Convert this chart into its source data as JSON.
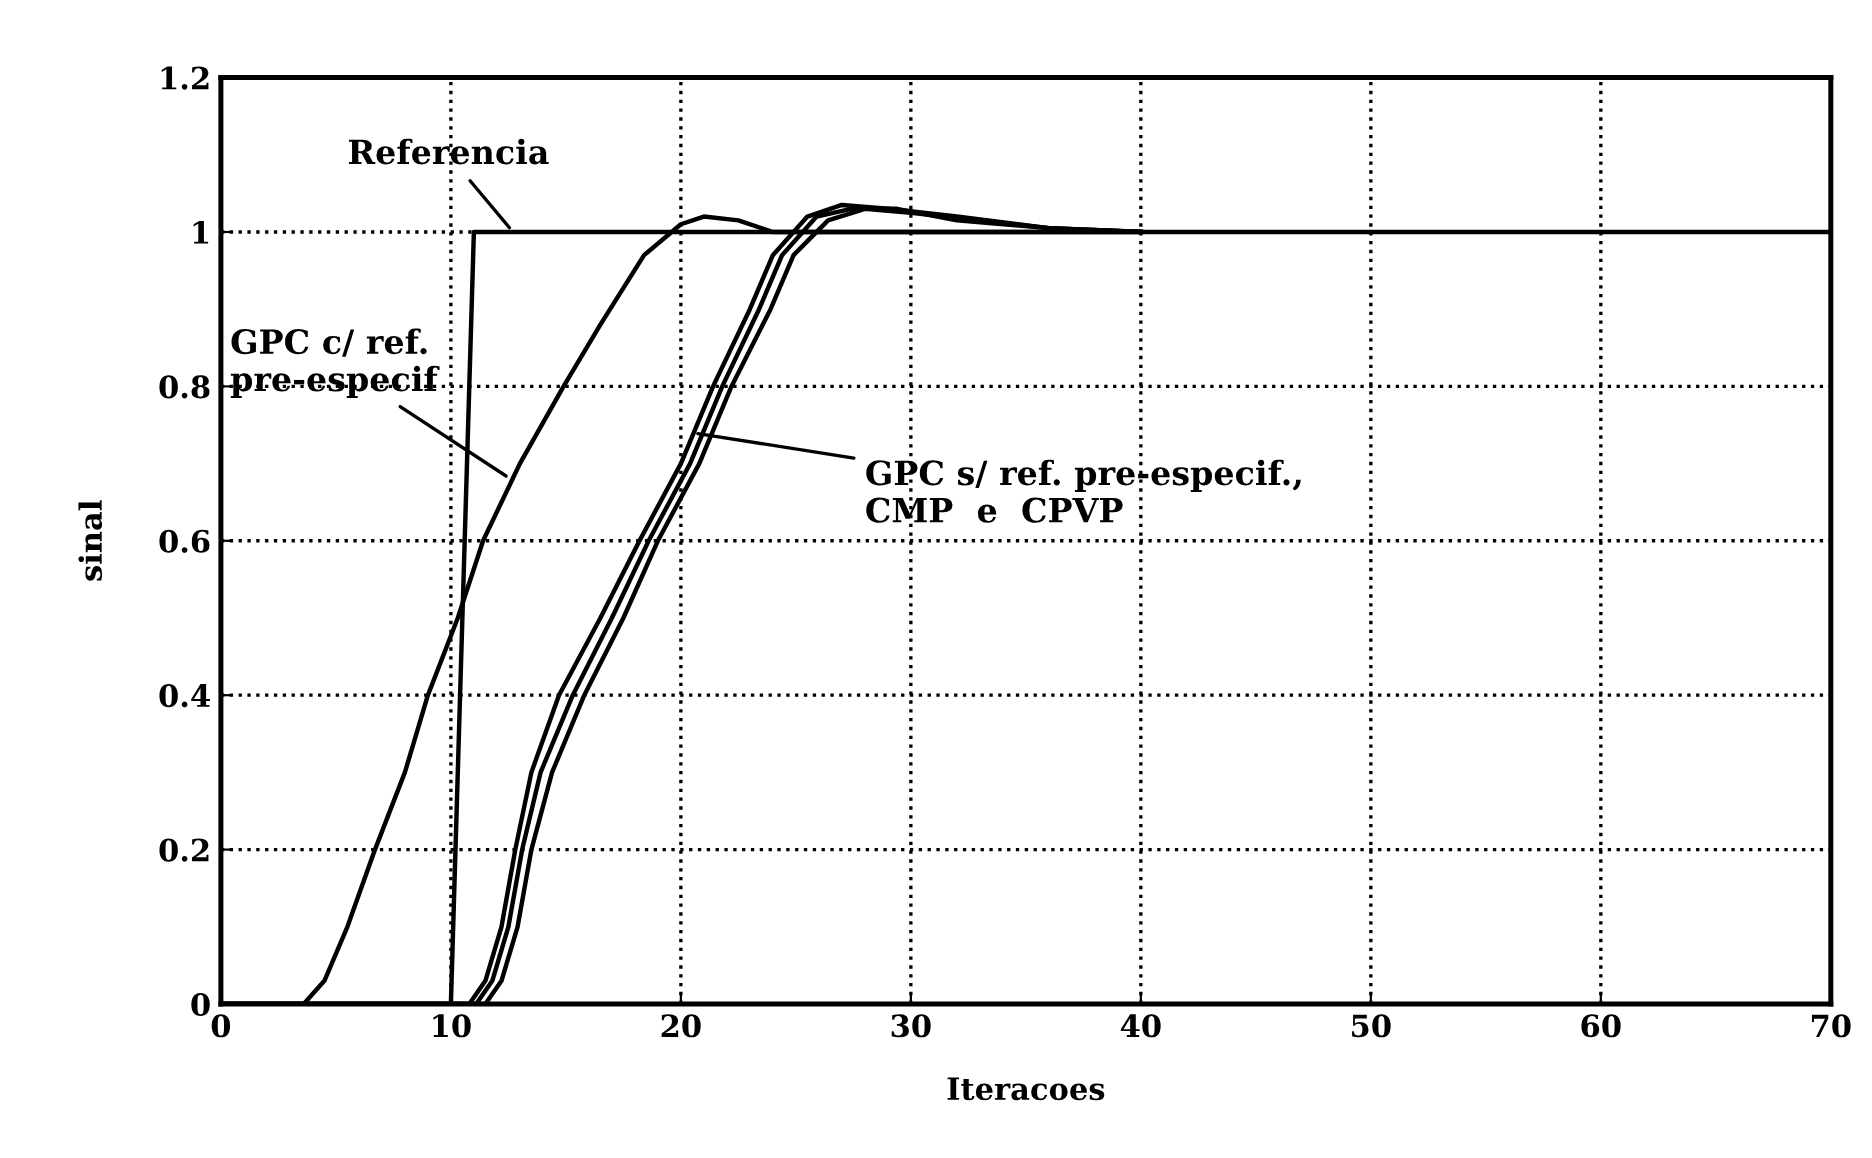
{
  "chart_data": {
    "type": "line",
    "xlabel": "Iteracoes",
    "ylabel": "sinal",
    "xlim": [
      0,
      70
    ],
    "xticks": [
      0,
      10,
      20,
      30,
      40,
      50,
      60,
      70
    ],
    "ylim": [
      0,
      1.2
    ],
    "yticks": [
      0,
      0.2,
      0.4,
      0.6,
      0.8,
      1,
      1.2
    ],
    "grid": true,
    "marker": "none",
    "line_style": "solid",
    "series": [
      {
        "color": "#000000",
        "x": [
          0,
          10,
          11,
          70
        ],
        "values": [
          0,
          0,
          1,
          1
        ]
      },
      {
        "color": "#000000",
        "x": [
          0,
          3,
          3.6,
          4.5,
          5.5,
          6.7,
          8,
          9,
          10.3,
          11.4,
          13,
          14.9,
          16.5,
          18.4,
          20,
          21,
          22.5,
          24,
          27,
          30,
          40
        ],
        "values": [
          0,
          0,
          0,
          0.03,
          0.1,
          0.2,
          0.3,
          0.4,
          0.5,
          0.6,
          0.7,
          0.8,
          0.88,
          0.97,
          1.01,
          1.02,
          1.015,
          1.0,
          1.0,
          1.0,
          1.0
        ]
      },
      {
        "color": "#000000",
        "x": [
          0,
          10.8,
          11.5,
          12.2,
          12.8,
          13.5,
          14.7,
          16.5,
          18.2,
          20,
          21.4,
          23,
          24,
          25.5,
          27,
          29,
          32,
          36,
          40
        ],
        "values": [
          0,
          0,
          0.03,
          0.1,
          0.2,
          0.3,
          0.4,
          0.5,
          0.6,
          0.7,
          0.8,
          0.9,
          0.97,
          1.02,
          1.035,
          1.03,
          1.02,
          1.005,
          1.0
        ]
      },
      {
        "color": "#000000",
        "x": [
          0,
          11.1,
          11.8,
          12.5,
          13.1,
          13.9,
          15.3,
          17,
          18.6,
          20.4,
          21.8,
          23.4,
          24.4,
          25.9,
          27.4,
          29.4,
          32,
          36,
          40
        ],
        "values": [
          0,
          0,
          0.03,
          0.1,
          0.2,
          0.3,
          0.4,
          0.5,
          0.6,
          0.7,
          0.8,
          0.9,
          0.97,
          1.02,
          1.03,
          1.03,
          1.015,
          1.005,
          1.0
        ]
      },
      {
        "color": "#000000",
        "x": [
          0,
          11.5,
          12.2,
          12.9,
          13.5,
          14.4,
          15.8,
          17.5,
          19,
          20.8,
          22.2,
          23.9,
          24.9,
          26.4,
          28,
          30,
          33,
          36,
          40
        ],
        "values": [
          0,
          0,
          0.03,
          0.1,
          0.2,
          0.3,
          0.4,
          0.5,
          0.6,
          0.7,
          0.8,
          0.9,
          0.97,
          1.015,
          1.03,
          1.025,
          1.015,
          1.005,
          1.0
        ]
      }
    ],
    "annotations": [
      {
        "text": "Referencia",
        "x": 12.7,
        "y": 1.0
      },
      {
        "text": "GPC c/ ref.\npre-especif",
        "x": 12.6,
        "y": 0.68
      },
      {
        "text": "GPC s/ ref. pre-especif.,\nCMP  e  CPVP",
        "x": 20.5,
        "y": 0.74
      }
    ]
  }
}
